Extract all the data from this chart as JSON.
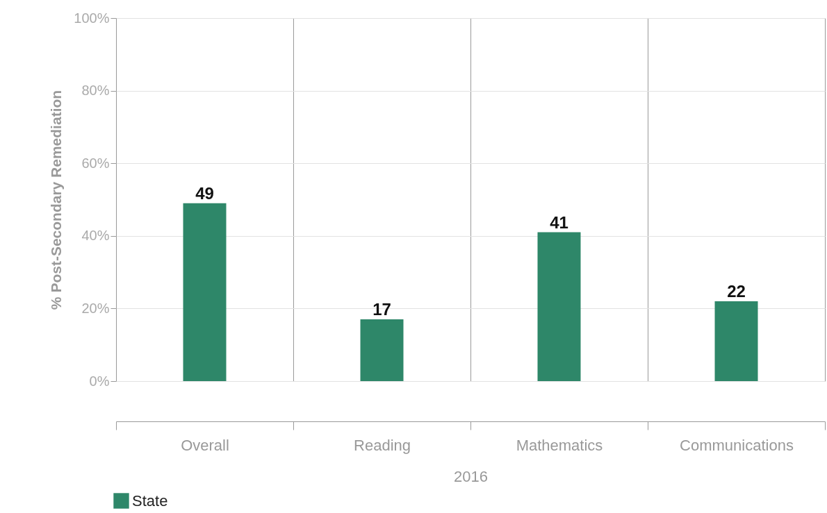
{
  "chart_data": {
    "type": "bar",
    "ylabel": "% Post-Secondary Remediation",
    "xlabel": "2016",
    "categories": [
      "Overall",
      "Reading",
      "Mathematics",
      "Communications"
    ],
    "series": [
      {
        "name": "State",
        "color": "#2e8769",
        "values": [
          49,
          17,
          41,
          22
        ]
      }
    ],
    "ylim": [
      0,
      100
    ],
    "yticks": [
      {
        "value": 0,
        "label": "0%"
      },
      {
        "value": 20,
        "label": "20%"
      },
      {
        "value": 40,
        "label": "40%"
      },
      {
        "value": 60,
        "label": "60%"
      },
      {
        "value": 80,
        "label": "80%"
      },
      {
        "value": 100,
        "label": "100%"
      }
    ],
    "grid": true,
    "data_labels": true,
    "legend": "bottom left"
  }
}
